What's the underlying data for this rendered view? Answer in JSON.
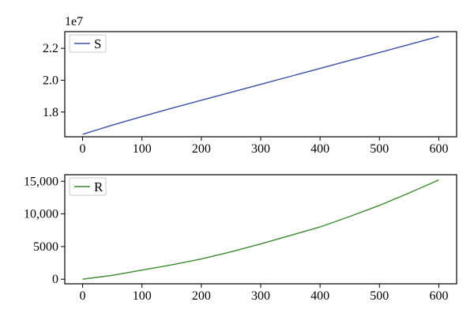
{
  "chart_data": [
    {
      "type": "line",
      "x": [
        0,
        50,
        100,
        150,
        200,
        250,
        300,
        350,
        400,
        450,
        500,
        550,
        600
      ],
      "series": [
        {
          "name": "S",
          "color": "#3a4ea5",
          "values": [
            16600000,
            17180000,
            17720000,
            18240000,
            18740000,
            19240000,
            19740000,
            20240000,
            20740000,
            21240000,
            21740000,
            22240000,
            22750000
          ]
        }
      ],
      "xlim": [
        -30,
        630
      ],
      "ylim": [
        16450000,
        23050000
      ],
      "xticks": [
        0,
        100,
        200,
        300,
        400,
        500,
        600
      ],
      "xtick_labels": [
        "0",
        "100",
        "200",
        "300",
        "400",
        "500",
        "600"
      ],
      "yticks": [
        18000000,
        20000000,
        22000000
      ],
      "ytick_labels": [
        "1.8",
        "2.0",
        "2.2"
      ],
      "exponent_label": "1e7",
      "legend_position": "upper-left",
      "grid": false
    },
    {
      "type": "line",
      "x": [
        0,
        50,
        100,
        150,
        200,
        250,
        300,
        350,
        400,
        450,
        500,
        550,
        600
      ],
      "series": [
        {
          "name": "R",
          "color": "#3a8a2e",
          "values": [
            0,
            600,
            1400,
            2200,
            3100,
            4200,
            5400,
            6700,
            8000,
            9600,
            11300,
            13200,
            15200
          ]
        }
      ],
      "xlim": [
        -30,
        630
      ],
      "ylim": [
        -700,
        16000
      ],
      "xticks": [
        0,
        100,
        200,
        300,
        400,
        500,
        600
      ],
      "xtick_labels": [
        "0",
        "100",
        "200",
        "300",
        "400",
        "500",
        "600"
      ],
      "yticks": [
        0,
        5000,
        10000,
        15000
      ],
      "ytick_labels": [
        "0",
        "5000",
        "10,000",
        "15,000"
      ],
      "legend_position": "upper-left",
      "grid": false
    }
  ]
}
